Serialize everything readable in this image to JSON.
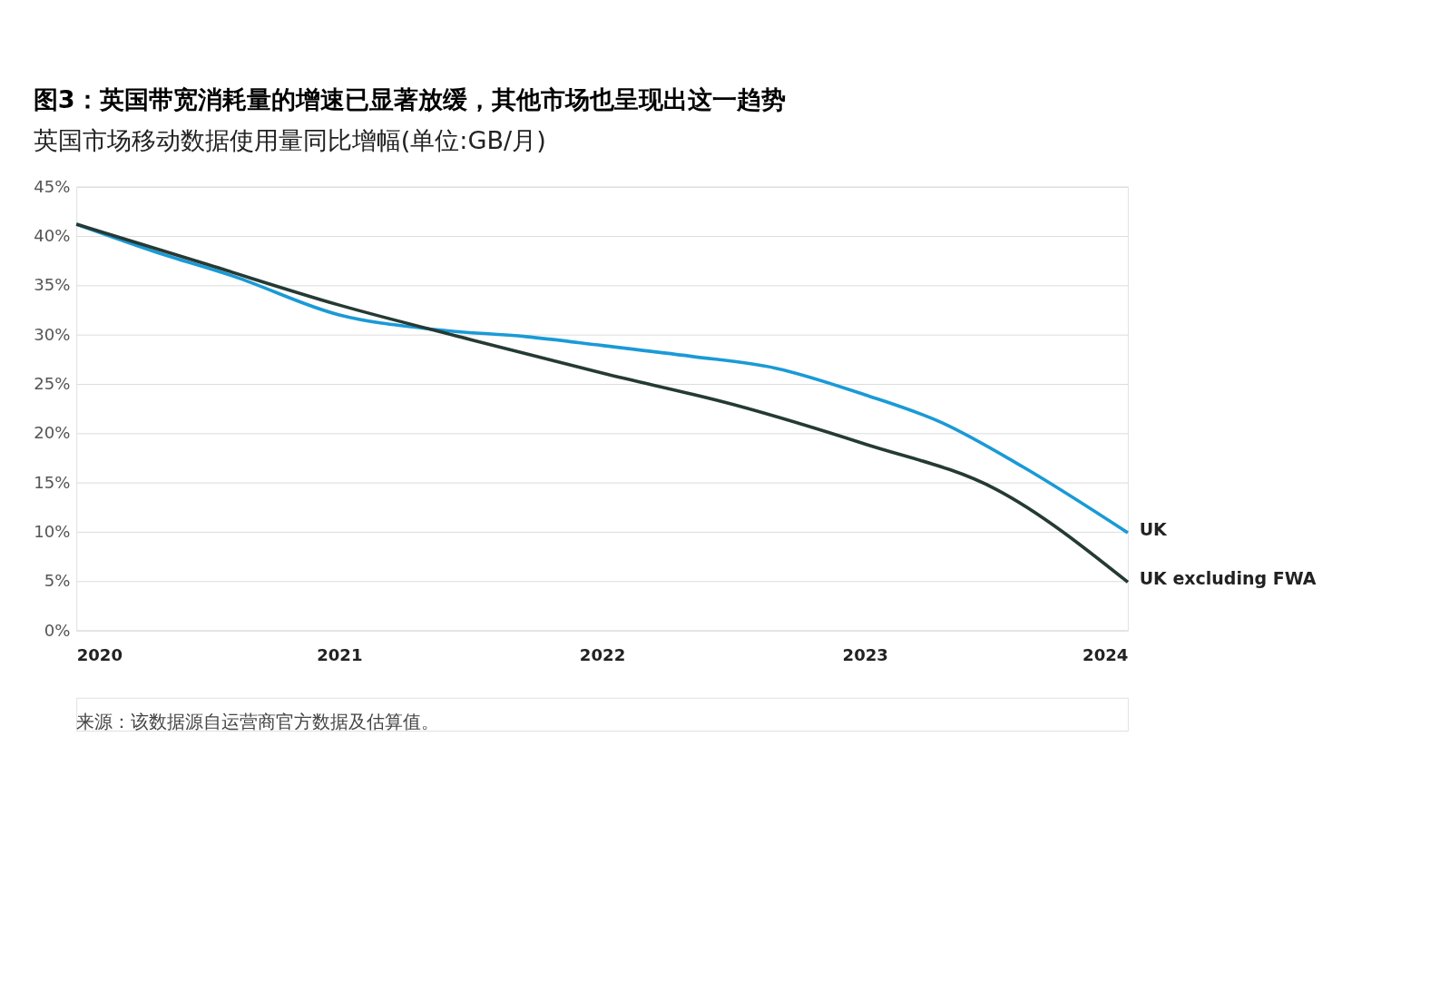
{
  "chart_data": {
    "type": "line",
    "title": "图3：英国带宽消耗量的增速已显著放缓，其他市场也呈现出这一趋势",
    "subtitle": "英国市场移动数据使用量同比增幅(单位:GB/月)",
    "series": [
      {
        "name": "UK",
        "color": "#1a9ad6",
        "x": [
          2020,
          2020.3,
          2020.6,
          2021,
          2021.37,
          2021.71,
          2022,
          2022.34,
          2022.66,
          2023,
          2023.29,
          2023.6,
          2024
        ],
        "values": [
          41.2,
          38.4,
          35.9,
          32.0,
          30.5,
          29.8,
          28.9,
          27.8,
          26.6,
          23.9,
          21.1,
          16.6,
          9.9
        ]
      },
      {
        "name": "UK excluding FWA",
        "color": "#253a34",
        "x": [
          2020,
          2020.5,
          2021,
          2021.5,
          2022,
          2022.5,
          2023,
          2023.5,
          2024
        ],
        "values": [
          41.2,
          37.1,
          33.0,
          29.5,
          26.1,
          22.9,
          18.9,
          14.3,
          4.9
        ]
      }
    ],
    "xlim": [
      2020,
      2024
    ],
    "xticks": [
      2020,
      2021,
      2022,
      2023,
      2024
    ],
    "ylim": [
      0,
      45
    ],
    "yticks": [
      {
        "value": 0,
        "label": "0%"
      },
      {
        "value": 5,
        "label": "5%"
      },
      {
        "value": 10,
        "label": "10%"
      },
      {
        "value": 15,
        "label": "15%"
      },
      {
        "value": 20,
        "label": "20%"
      },
      {
        "value": 25,
        "label": "25%"
      },
      {
        "value": 30,
        "label": "30%"
      },
      {
        "value": 35,
        "label": "35%"
      },
      {
        "value": 40,
        "label": "40%"
      },
      {
        "value": 45,
        "label": "45%"
      }
    ],
    "grid": "y",
    "marker": "none",
    "line_style": "solid",
    "annotations": [
      "来源：该数据源自运营商官方数据及估算值。"
    ]
  }
}
